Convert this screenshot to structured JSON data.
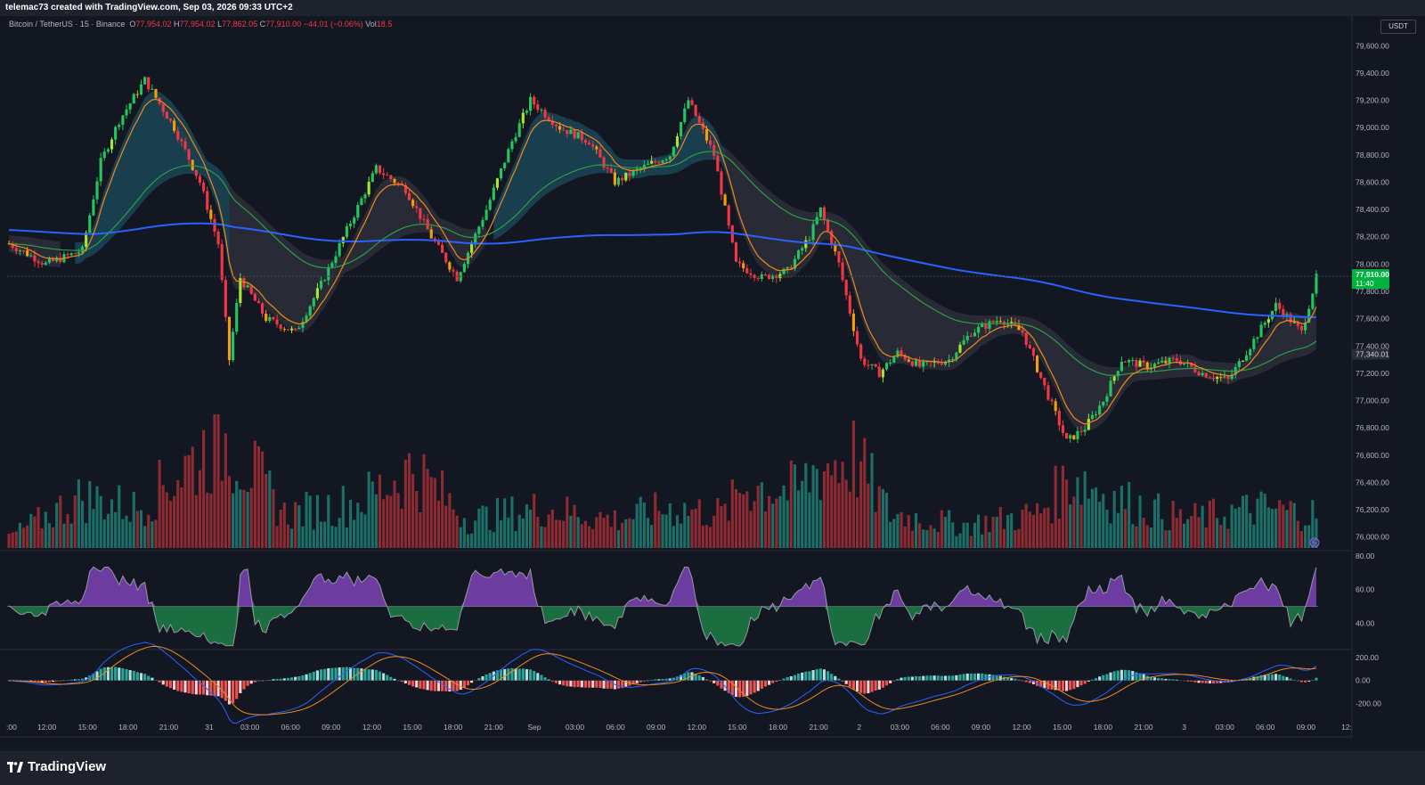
{
  "header": {
    "attribution": "telemac73 created with TradingView.com, Sep 03, 2026 09:33 UTC+2"
  },
  "legend": {
    "symbol": "Bitcoin / TetherUS · 15 · Binance",
    "o_key": "O",
    "o": "77,954.02",
    "h_key": "H",
    "h": "77,954.02",
    "l_key": "L",
    "l": "77,862.05",
    "c_key": "C",
    "c": "77,910.00",
    "change": "−44.01 (−0.06%)",
    "vol_key": "Vol",
    "vol": "18.5"
  },
  "currency_label": "USDT",
  "branding": {
    "logo_text": "TradingView"
  },
  "colors": {
    "background": "#131722",
    "up_candle": "#22c55e",
    "down_candle": "#f23645",
    "vol_up": "#1b6f67",
    "vol_down": "#8e2a32",
    "ema_fast": "#f0891d",
    "ema_mid": "#2e9d4a",
    "ma_slow": "#2962ff",
    "cloud_teal": "#1f5f73",
    "cloud_gray": "#3a3d46",
    "rsi_purple": "#a855f7",
    "rsi_green": "#22c55e",
    "macd_line": "#2962ff",
    "signal_line": "#f0891d",
    "price_tag": "#089981"
  },
  "chart_data": {
    "type": "candlestick",
    "symbol": "Bitcoin / TetherUS",
    "interval": "15",
    "exchange": "Binance",
    "price_axis": {
      "ylim": [
        75900,
        79700
      ],
      "ticks": [
        "79,600.00",
        "79,400.00",
        "79,200.00",
        "79,000.00",
        "78,800.00",
        "78,600.00",
        "78,400.00",
        "78,200.00",
        "78,000.00",
        "77,800.00",
        "77,600.00",
        "77,400.00",
        "77,200.00",
        "77,000.00",
        "76,800.00",
        "76,600.00",
        "76,400.00",
        "76,200.00",
        "76,000.00"
      ]
    },
    "current_price": {
      "value": "77,910.00",
      "countdown": "11:40"
    },
    "level_marker": "77,340.01",
    "time_labels": [
      ":00",
      "12:00",
      "15:00",
      "18:00",
      "21:00",
      "31",
      "03:00",
      "06:00",
      "09:00",
      "12:00",
      "15:00",
      "18:00",
      "21:00",
      "Sep",
      "03:00",
      "06:00",
      "09:00",
      "12:00",
      "15:00",
      "18:00",
      "21:00",
      "2",
      "03:00",
      "06:00",
      "09:00",
      "12:00",
      "15:00",
      "18:00",
      "21:00",
      "3",
      "03:00",
      "06:00",
      "09:00",
      "12:"
    ],
    "price_path_anchors": [
      [
        0,
        78150
      ],
      [
        10,
        78000
      ],
      [
        20,
        78100
      ],
      [
        25,
        78750
      ],
      [
        30,
        79050
      ],
      [
        37,
        79350
      ],
      [
        45,
        79000
      ],
      [
        52,
        78600
      ],
      [
        57,
        78150
      ],
      [
        60,
        77300
      ],
      [
        63,
        77900
      ],
      [
        70,
        77600
      ],
      [
        78,
        77500
      ],
      [
        85,
        77850
      ],
      [
        92,
        78250
      ],
      [
        100,
        78700
      ],
      [
        108,
        78550
      ],
      [
        115,
        78200
      ],
      [
        122,
        77900
      ],
      [
        130,
        78400
      ],
      [
        137,
        78900
      ],
      [
        142,
        79200
      ],
      [
        150,
        79000
      ],
      [
        158,
        78900
      ],
      [
        165,
        78600
      ],
      [
        172,
        78700
      ],
      [
        180,
        78800
      ],
      [
        185,
        79200
      ],
      [
        192,
        78800
      ],
      [
        198,
        78000
      ],
      [
        205,
        77900
      ],
      [
        212,
        77950
      ],
      [
        218,
        78200
      ],
      [
        221,
        78400
      ],
      [
        226,
        78000
      ],
      [
        232,
        77300
      ],
      [
        237,
        77200
      ],
      [
        242,
        77350
      ],
      [
        248,
        77250
      ],
      [
        256,
        77300
      ],
      [
        262,
        77500
      ],
      [
        270,
        77600
      ],
      [
        276,
        77500
      ],
      [
        282,
        77100
      ],
      [
        288,
        76700
      ],
      [
        293,
        76800
      ],
      [
        298,
        77000
      ],
      [
        303,
        77300
      ],
      [
        310,
        77250
      ],
      [
        318,
        77300
      ],
      [
        325,
        77200
      ],
      [
        332,
        77150
      ],
      [
        338,
        77400
      ],
      [
        345,
        77700
      ],
      [
        352,
        77500
      ],
      [
        356,
        77900
      ]
    ],
    "volume_anchors": [
      [
        0,
        0.1
      ],
      [
        20,
        0.45
      ],
      [
        35,
        0.35
      ],
      [
        55,
        0.9
      ],
      [
        60,
        0.95
      ],
      [
        75,
        0.3
      ],
      [
        95,
        0.4
      ],
      [
        110,
        0.7
      ],
      [
        125,
        0.25
      ],
      [
        145,
        0.35
      ],
      [
        165,
        0.25
      ],
      [
        180,
        0.35
      ],
      [
        195,
        0.3
      ],
      [
        200,
        0.55
      ],
      [
        215,
        0.5
      ],
      [
        220,
        0.7
      ],
      [
        230,
        0.8
      ],
      [
        240,
        0.3
      ],
      [
        260,
        0.2
      ],
      [
        280,
        0.3
      ],
      [
        290,
        0.65
      ],
      [
        300,
        0.45
      ],
      [
        320,
        0.25
      ],
      [
        340,
        0.35
      ],
      [
        356,
        0.3
      ]
    ],
    "rsi": {
      "ticks": [
        "80.00",
        "60.00",
        "40.00"
      ],
      "ylim": [
        25,
        82
      ],
      "midline": 50
    },
    "macd": {
      "ticks": [
        "200.00",
        "0.00",
        "-200.00"
      ],
      "ylim": [
        -280,
        260
      ]
    }
  }
}
